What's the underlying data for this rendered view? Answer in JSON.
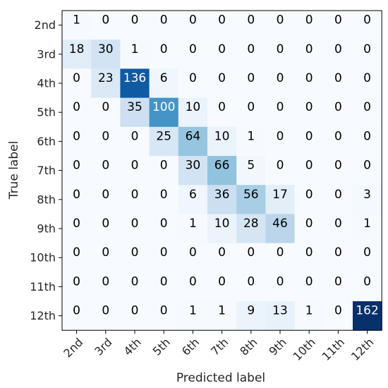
{
  "chart_data": {
    "type": "heatmap",
    "title": "",
    "xlabel": "Predicted label",
    "ylabel": "True label",
    "categories": [
      "2nd",
      "3rd",
      "4th",
      "5th",
      "6th",
      "7th",
      "8th",
      "9th",
      "10th",
      "11th",
      "12th"
    ],
    "matrix": [
      [
        1,
        0,
        0,
        0,
        0,
        0,
        0,
        0,
        0,
        0,
        0
      ],
      [
        18,
        30,
        1,
        0,
        0,
        0,
        0,
        0,
        0,
        0,
        0
      ],
      [
        0,
        23,
        136,
        6,
        0,
        0,
        0,
        0,
        0,
        0,
        0
      ],
      [
        0,
        0,
        35,
        100,
        10,
        0,
        0,
        0,
        0,
        0,
        0
      ],
      [
        0,
        0,
        0,
        25,
        64,
        10,
        1,
        0,
        0,
        0,
        0
      ],
      [
        0,
        0,
        0,
        0,
        30,
        66,
        5,
        0,
        0,
        0,
        0
      ],
      [
        0,
        0,
        0,
        0,
        6,
        36,
        56,
        17,
        0,
        0,
        3
      ],
      [
        0,
        0,
        0,
        0,
        1,
        10,
        28,
        46,
        0,
        0,
        1
      ],
      [
        0,
        0,
        0,
        0,
        0,
        0,
        0,
        0,
        0,
        0,
        0
      ],
      [
        0,
        0,
        0,
        0,
        0,
        0,
        0,
        0,
        0,
        0,
        0
      ],
      [
        0,
        0,
        0,
        0,
        1,
        1,
        9,
        13,
        1,
        0,
        162
      ]
    ],
    "colormap": "Blues",
    "value_range": [
      0,
      162
    ],
    "grid": false,
    "legend": "none"
  },
  "colors": {
    "low": "#f7fbff",
    "high": "#08306b",
    "text_dark": "#000000",
    "text_light": "#ffffff"
  }
}
